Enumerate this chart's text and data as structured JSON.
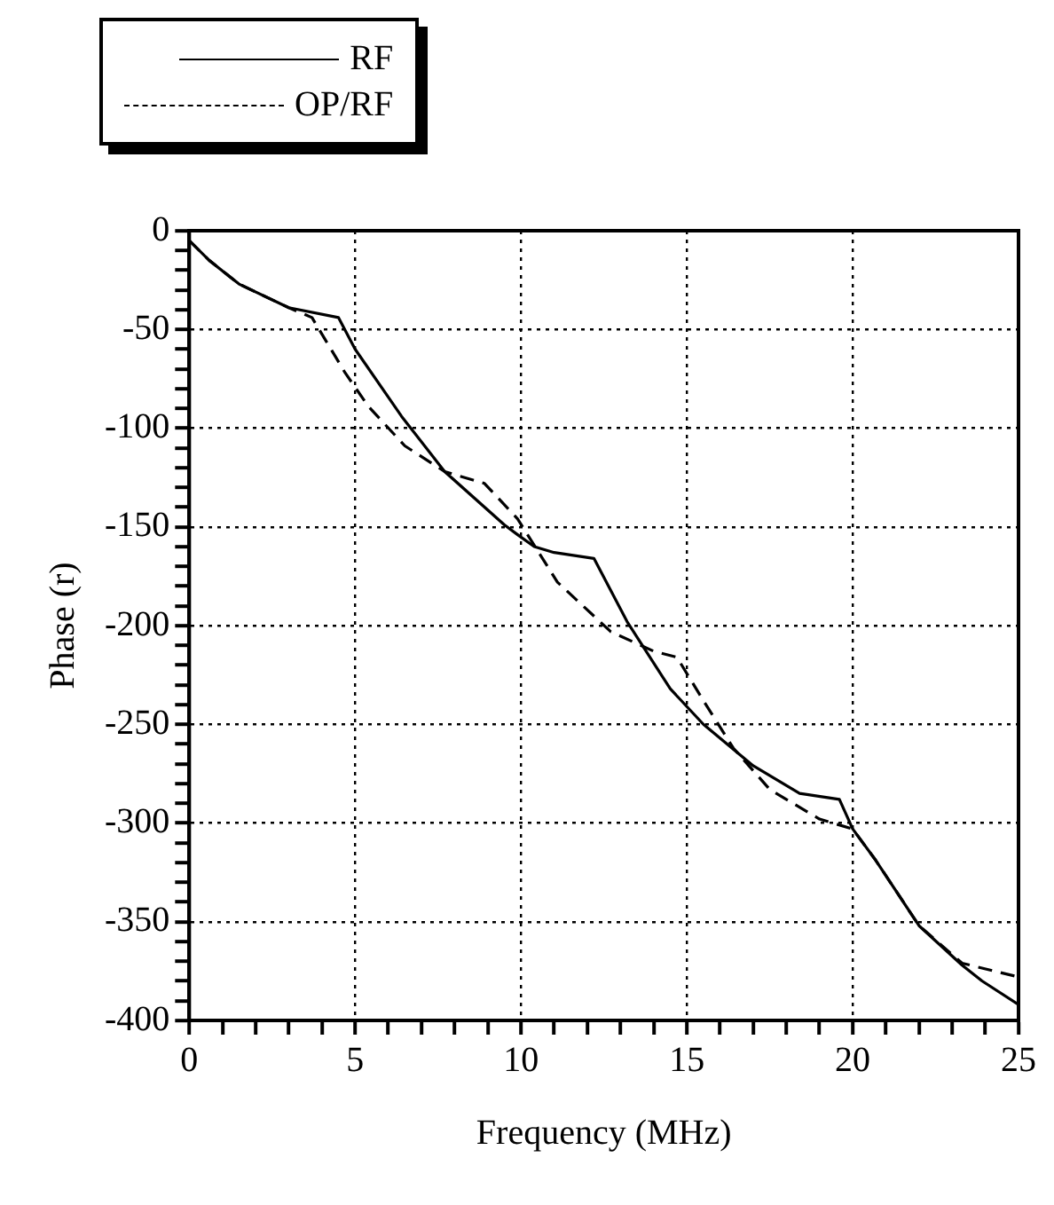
{
  "chart_data": {
    "type": "line",
    "xlabel": "Frequency (MHz)",
    "ylabel": "Phase (r)",
    "legend": "top left",
    "grid": true,
    "marker": "none",
    "xlim": [
      0,
      25
    ],
    "ylim": [
      -400,
      0
    ],
    "xticks": [
      0,
      {
        "value": 1,
        "label": null
      },
      {
        "value": 2,
        "label": null
      },
      {
        "value": 3,
        "label": null
      },
      {
        "value": 4,
        "label": null
      },
      5,
      {
        "value": 6,
        "label": null
      },
      {
        "value": 7,
        "label": null
      },
      {
        "value": 8,
        "label": null
      },
      {
        "value": 9,
        "label": null
      },
      10,
      {
        "value": 11,
        "label": null
      },
      {
        "value": 12,
        "label": null
      },
      {
        "value": 13,
        "label": null
      },
      {
        "value": 14,
        "label": null
      },
      15,
      {
        "value": 16,
        "label": null
      },
      {
        "value": 17,
        "label": null
      },
      {
        "value": 18,
        "label": null
      },
      {
        "value": 19,
        "label": null
      },
      20,
      {
        "value": 21,
        "label": null
      },
      {
        "value": 22,
        "label": null
      },
      {
        "value": 23,
        "label": null
      },
      {
        "value": 24,
        "label": null
      },
      25
    ],
    "yticks": [
      -400,
      {
        "value": -390,
        "label": null
      },
      {
        "value": -380,
        "label": null
      },
      {
        "value": -370,
        "label": null
      },
      {
        "value": -360,
        "label": null
      },
      -350,
      {
        "value": -340,
        "label": null
      },
      {
        "value": -330,
        "label": null
      },
      {
        "value": -320,
        "label": null
      },
      {
        "value": -310,
        "label": null
      },
      -300,
      {
        "value": -290,
        "label": null
      },
      {
        "value": -280,
        "label": null
      },
      {
        "value": -270,
        "label": null
      },
      {
        "value": -260,
        "label": null
      },
      -250,
      {
        "value": -240,
        "label": null
      },
      {
        "value": -230,
        "label": null
      },
      {
        "value": -220,
        "label": null
      },
      {
        "value": -210,
        "label": null
      },
      -200,
      {
        "value": -190,
        "label": null
      },
      {
        "value": -180,
        "label": null
      },
      {
        "value": -170,
        "label": null
      },
      {
        "value": -160,
        "label": null
      },
      -150,
      {
        "value": -140,
        "label": null
      },
      {
        "value": -130,
        "label": null
      },
      {
        "value": -120,
        "label": null
      },
      {
        "value": -110,
        "label": null
      },
      -100,
      {
        "value": -90,
        "label": null
      },
      {
        "value": -80,
        "label": null
      },
      {
        "value": -70,
        "label": null
      },
      {
        "value": -60,
        "label": null
      },
      -50,
      {
        "value": -40,
        "label": null
      },
      {
        "value": -30,
        "label": null
      },
      {
        "value": -20,
        "label": null
      },
      {
        "value": -10,
        "label": null
      },
      0
    ],
    "series": [
      {
        "name": "RF",
        "color": "#000000",
        "line_style": "solid",
        "x": [
          0,
          0.6,
          1.5,
          3,
          4.5,
          5,
          6.4,
          7.7,
          9.5,
          9.9,
          10.4,
          11,
          12.2,
          13.2,
          14.5,
          15.5,
          17,
          18.4,
          19.6,
          20,
          20.7,
          22,
          23.3,
          23.9,
          25
        ],
        "values": [
          -5,
          -15,
          -27,
          -39,
          -44,
          -60,
          -94,
          -122,
          -149,
          -154,
          -160,
          -163,
          -166,
          -198,
          -232,
          -250,
          -271,
          -285,
          -288,
          -303,
          -319,
          -352,
          -372,
          -380,
          -392
        ]
      },
      {
        "name": "OP/RF",
        "color": "#000000",
        "line_style": "dashed",
        "x": [
          0,
          0.6,
          1.5,
          3,
          3.7,
          4.7,
          5.4,
          6.5,
          7.7,
          8.9,
          9.9,
          11.1,
          12.7,
          14,
          14.7,
          15.5,
          16.4,
          17.5,
          19,
          20,
          20.7,
          22,
          23.3,
          25
        ],
        "values": [
          -5,
          -15,
          -27,
          -39,
          -44,
          -72,
          -89,
          -109,
          -122,
          -128,
          -146,
          -178,
          -203,
          -213,
          -216,
          -238,
          -262,
          -283,
          -298,
          -303,
          -319,
          -352,
          -371,
          -378
        ]
      }
    ]
  }
}
